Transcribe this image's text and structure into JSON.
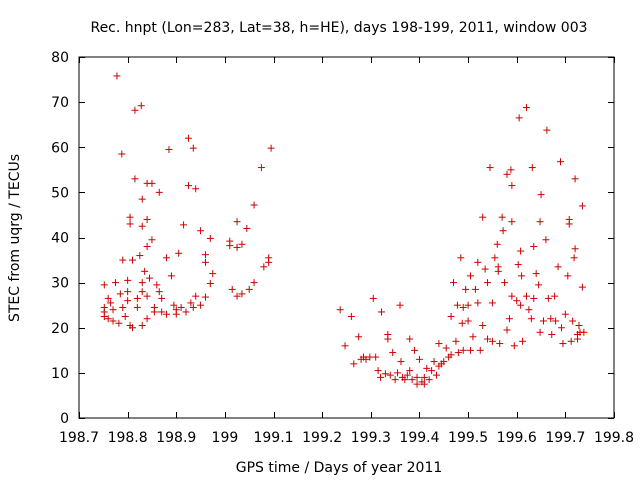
{
  "chart_data": {
    "type": "scatter",
    "title": "Rec. hnpt (Lon=283, Lat=38, h=HE), days 198-199, 2011, window 003",
    "xlabel": "GPS time / Days of year 2011",
    "ylabel": "STEC from uqrg / TECUs",
    "xlim": [
      198.7,
      199.8
    ],
    "ylim": [
      0,
      80
    ],
    "xticks": [
      198.7,
      198.8,
      198.9,
      199,
      199.1,
      199.2,
      199.3,
      199.4,
      199.5,
      199.6,
      199.7,
      199.8
    ],
    "xtick_labels": [
      "198.7",
      "198.8",
      "198.9",
      "199",
      "199.1",
      "199.2",
      "199.3",
      "199.4",
      "199.5",
      "199.6",
      "199.7",
      "199.8"
    ],
    "yticks": [
      0,
      10,
      20,
      30,
      40,
      50,
      60,
      70,
      80
    ],
    "ytick_labels": [
      "0",
      "10",
      "20",
      "30",
      "40",
      "50",
      "60",
      "70",
      "80"
    ],
    "grid": false,
    "marker": "+",
    "marker_color": "#cc0000",
    "series": [
      {
        "name": "STEC",
        "points": [
          [
            198.752,
            23.5
          ],
          [
            198.752,
            22.5
          ],
          [
            198.752,
            24.5
          ],
          [
            198.752,
            29.5
          ],
          [
            198.76,
            22
          ],
          [
            198.76,
            26.5
          ],
          [
            198.765,
            25.5
          ],
          [
            198.77,
            21.5
          ],
          [
            198.77,
            24
          ],
          [
            198.775,
            30
          ],
          [
            198.778,
            75.8
          ],
          [
            198.782,
            21
          ],
          [
            198.785,
            27.5
          ],
          [
            198.788,
            58.5
          ],
          [
            198.79,
            35
          ],
          [
            198.79,
            24.5
          ],
          [
            198.795,
            22.5
          ],
          [
            198.8,
            30.5
          ],
          [
            198.8,
            28
          ],
          [
            198.8,
            26
          ],
          [
            198.805,
            44.5
          ],
          [
            198.805,
            43
          ],
          [
            198.805,
            20.5
          ],
          [
            198.81,
            35
          ],
          [
            198.81,
            20
          ],
          [
            198.815,
            68.2
          ],
          [
            198.815,
            53
          ],
          [
            198.82,
            26.5
          ],
          [
            198.82,
            24.5
          ],
          [
            198.825,
            36
          ],
          [
            198.828,
            69.2
          ],
          [
            198.83,
            48.5
          ],
          [
            198.83,
            42.5
          ],
          [
            198.83,
            30
          ],
          [
            198.83,
            28
          ],
          [
            198.83,
            20.5
          ],
          [
            198.835,
            32.5
          ],
          [
            198.84,
            52
          ],
          [
            198.84,
            44
          ],
          [
            198.84,
            38
          ],
          [
            198.84,
            27
          ],
          [
            198.84,
            22
          ],
          [
            198.845,
            31
          ],
          [
            198.85,
            52
          ],
          [
            198.85,
            39.5
          ],
          [
            198.855,
            24.5
          ],
          [
            198.855,
            23.5
          ],
          [
            198.86,
            29.5
          ],
          [
            198.865,
            50
          ],
          [
            198.865,
            28
          ],
          [
            198.87,
            26.5
          ],
          [
            198.87,
            23.5
          ],
          [
            198.88,
            35.5
          ],
          [
            198.88,
            23
          ],
          [
            198.885,
            59.5
          ],
          [
            198.89,
            31.5
          ],
          [
            198.895,
            25
          ],
          [
            198.9,
            24
          ],
          [
            198.9,
            23
          ],
          [
            198.905,
            36.5
          ],
          [
            198.91,
            24.5
          ],
          [
            198.915,
            42.8
          ],
          [
            198.92,
            23.5
          ],
          [
            198.925,
            62
          ],
          [
            198.925,
            51.5
          ],
          [
            198.93,
            25.5
          ],
          [
            198.935,
            24.5
          ],
          [
            198.935,
            59.8
          ],
          [
            198.94,
            50.8
          ],
          [
            198.94,
            27
          ],
          [
            198.95,
            41.5
          ],
          [
            198.95,
            25
          ],
          [
            198.96,
            36.2
          ],
          [
            198.96,
            34.5
          ],
          [
            198.96,
            26.8
          ],
          [
            198.97,
            39.8
          ],
          [
            198.97,
            29.8
          ],
          [
            198.975,
            32
          ],
          [
            199.01,
            39.2
          ],
          [
            199.01,
            38.2
          ],
          [
            199.015,
            28.5
          ],
          [
            199.025,
            43.5
          ],
          [
            199.025,
            37.8
          ],
          [
            199.025,
            27
          ],
          [
            199.035,
            38.5
          ],
          [
            199.035,
            27.5
          ],
          [
            199.045,
            42
          ],
          [
            199.05,
            28.5
          ],
          [
            199.06,
            47.2
          ],
          [
            199.06,
            30
          ],
          [
            199.075,
            55.5
          ],
          [
            199.08,
            33.5
          ],
          [
            199.09,
            35.5
          ],
          [
            199.09,
            34.5
          ],
          [
            199.095,
            59.8
          ],
          [
            199.237,
            24
          ],
          [
            199.247,
            16
          ],
          [
            199.26,
            22.5
          ],
          [
            199.265,
            12
          ],
          [
            199.275,
            18
          ],
          [
            199.28,
            13
          ],
          [
            199.285,
            13.5
          ],
          [
            199.29,
            13
          ],
          [
            199.298,
            13.5
          ],
          [
            199.305,
            26.5
          ],
          [
            199.31,
            13.5
          ],
          [
            199.315,
            10.5
          ],
          [
            199.32,
            9
          ],
          [
            199.322,
            23.5
          ],
          [
            199.33,
            9.8
          ],
          [
            199.335,
            18.5
          ],
          [
            199.335,
            17.5
          ],
          [
            199.34,
            9.5
          ],
          [
            199.345,
            14.5
          ],
          [
            199.35,
            8.5
          ],
          [
            199.355,
            10
          ],
          [
            199.36,
            25
          ],
          [
            199.362,
            12.5
          ],
          [
            199.365,
            9
          ],
          [
            199.37,
            8.5
          ],
          [
            199.375,
            9.5
          ],
          [
            199.38,
            17.5
          ],
          [
            199.38,
            10.5
          ],
          [
            199.385,
            8.5
          ],
          [
            199.39,
            15
          ],
          [
            199.395,
            7.5
          ],
          [
            199.395,
            9
          ],
          [
            199.4,
            13
          ],
          [
            199.405,
            8
          ],
          [
            199.41,
            7.5
          ],
          [
            199.41,
            9
          ],
          [
            199.415,
            11
          ],
          [
            199.42,
            8.5
          ],
          [
            199.425,
            10.5
          ],
          [
            199.43,
            12.5
          ],
          [
            199.435,
            9.5
          ],
          [
            199.44,
            16.5
          ],
          [
            199.44,
            11.5
          ],
          [
            199.445,
            12
          ],
          [
            199.45,
            12.5
          ],
          [
            199.455,
            15.5
          ],
          [
            199.46,
            13.5
          ],
          [
            199.465,
            22.5
          ],
          [
            199.465,
            14
          ],
          [
            199.47,
            30
          ],
          [
            199.475,
            17
          ],
          [
            199.478,
            25
          ],
          [
            199.48,
            14.5
          ],
          [
            199.485,
            35.5
          ],
          [
            199.488,
            21
          ],
          [
            199.49,
            24.5
          ],
          [
            199.49,
            15
          ],
          [
            199.495,
            28.5
          ],
          [
            199.5,
            25
          ],
          [
            199.5,
            21.5
          ],
          [
            199.505,
            31.5
          ],
          [
            199.505,
            15
          ],
          [
            199.51,
            18
          ],
          [
            199.515,
            28.5
          ],
          [
            199.52,
            34.5
          ],
          [
            199.52,
            25.5
          ],
          [
            199.525,
            15
          ],
          [
            199.53,
            44.5
          ],
          [
            199.53,
            20.5
          ],
          [
            199.535,
            33
          ],
          [
            199.54,
            30
          ],
          [
            199.54,
            17.5
          ],
          [
            199.545,
            55.5
          ],
          [
            199.55,
            25.5
          ],
          [
            199.55,
            17
          ],
          [
            199.555,
            35.5
          ],
          [
            199.56,
            38.5
          ],
          [
            199.562,
            32.5
          ],
          [
            199.562,
            33.5
          ],
          [
            199.565,
            16.5
          ],
          [
            199.57,
            44.5
          ],
          [
            199.572,
            41.5
          ],
          [
            199.575,
            30
          ],
          [
            199.58,
            54
          ],
          [
            199.58,
            19.5
          ],
          [
            199.585,
            22
          ],
          [
            199.588,
            55
          ],
          [
            199.59,
            51.5
          ],
          [
            199.59,
            43.5
          ],
          [
            199.59,
            27
          ],
          [
            199.595,
            16
          ],
          [
            199.6,
            26
          ],
          [
            199.603,
            34
          ],
          [
            199.605,
            66.5
          ],
          [
            199.608,
            37
          ],
          [
            199.608,
            25
          ],
          [
            199.61,
            31.5
          ],
          [
            199.612,
            17
          ],
          [
            199.62,
            68.8
          ],
          [
            199.62,
            27
          ],
          [
            199.625,
            24
          ],
          [
            199.63,
            22
          ],
          [
            199.632,
            55.5
          ],
          [
            199.635,
            38
          ],
          [
            199.635,
            26.5
          ],
          [
            199.64,
            32
          ],
          [
            199.645,
            29.5
          ],
          [
            199.648,
            43.5
          ],
          [
            199.648,
            19
          ],
          [
            199.65,
            49.5
          ],
          [
            199.655,
            21.5
          ],
          [
            199.66,
            39.5
          ],
          [
            199.662,
            63.8
          ],
          [
            199.665,
            26.5
          ],
          [
            199.67,
            22
          ],
          [
            199.672,
            18.5
          ],
          [
            199.678,
            27
          ],
          [
            199.68,
            21.5
          ],
          [
            199.685,
            33.5
          ],
          [
            199.69,
            56.8
          ],
          [
            199.692,
            20
          ],
          [
            199.695,
            16.5
          ],
          [
            199.7,
            23
          ],
          [
            199.705,
            31.5
          ],
          [
            199.708,
            44
          ],
          [
            199.708,
            43
          ],
          [
            199.712,
            17
          ],
          [
            199.715,
            21.5
          ],
          [
            199.718,
            35.5
          ],
          [
            199.72,
            37.5
          ],
          [
            199.72,
            53
          ],
          [
            199.725,
            17.5
          ],
          [
            199.725,
            18.5
          ],
          [
            199.728,
            20.5
          ],
          [
            199.73,
            19
          ],
          [
            199.735,
            47
          ],
          [
            199.735,
            29
          ],
          [
            199.738,
            19
          ]
        ]
      }
    ]
  }
}
